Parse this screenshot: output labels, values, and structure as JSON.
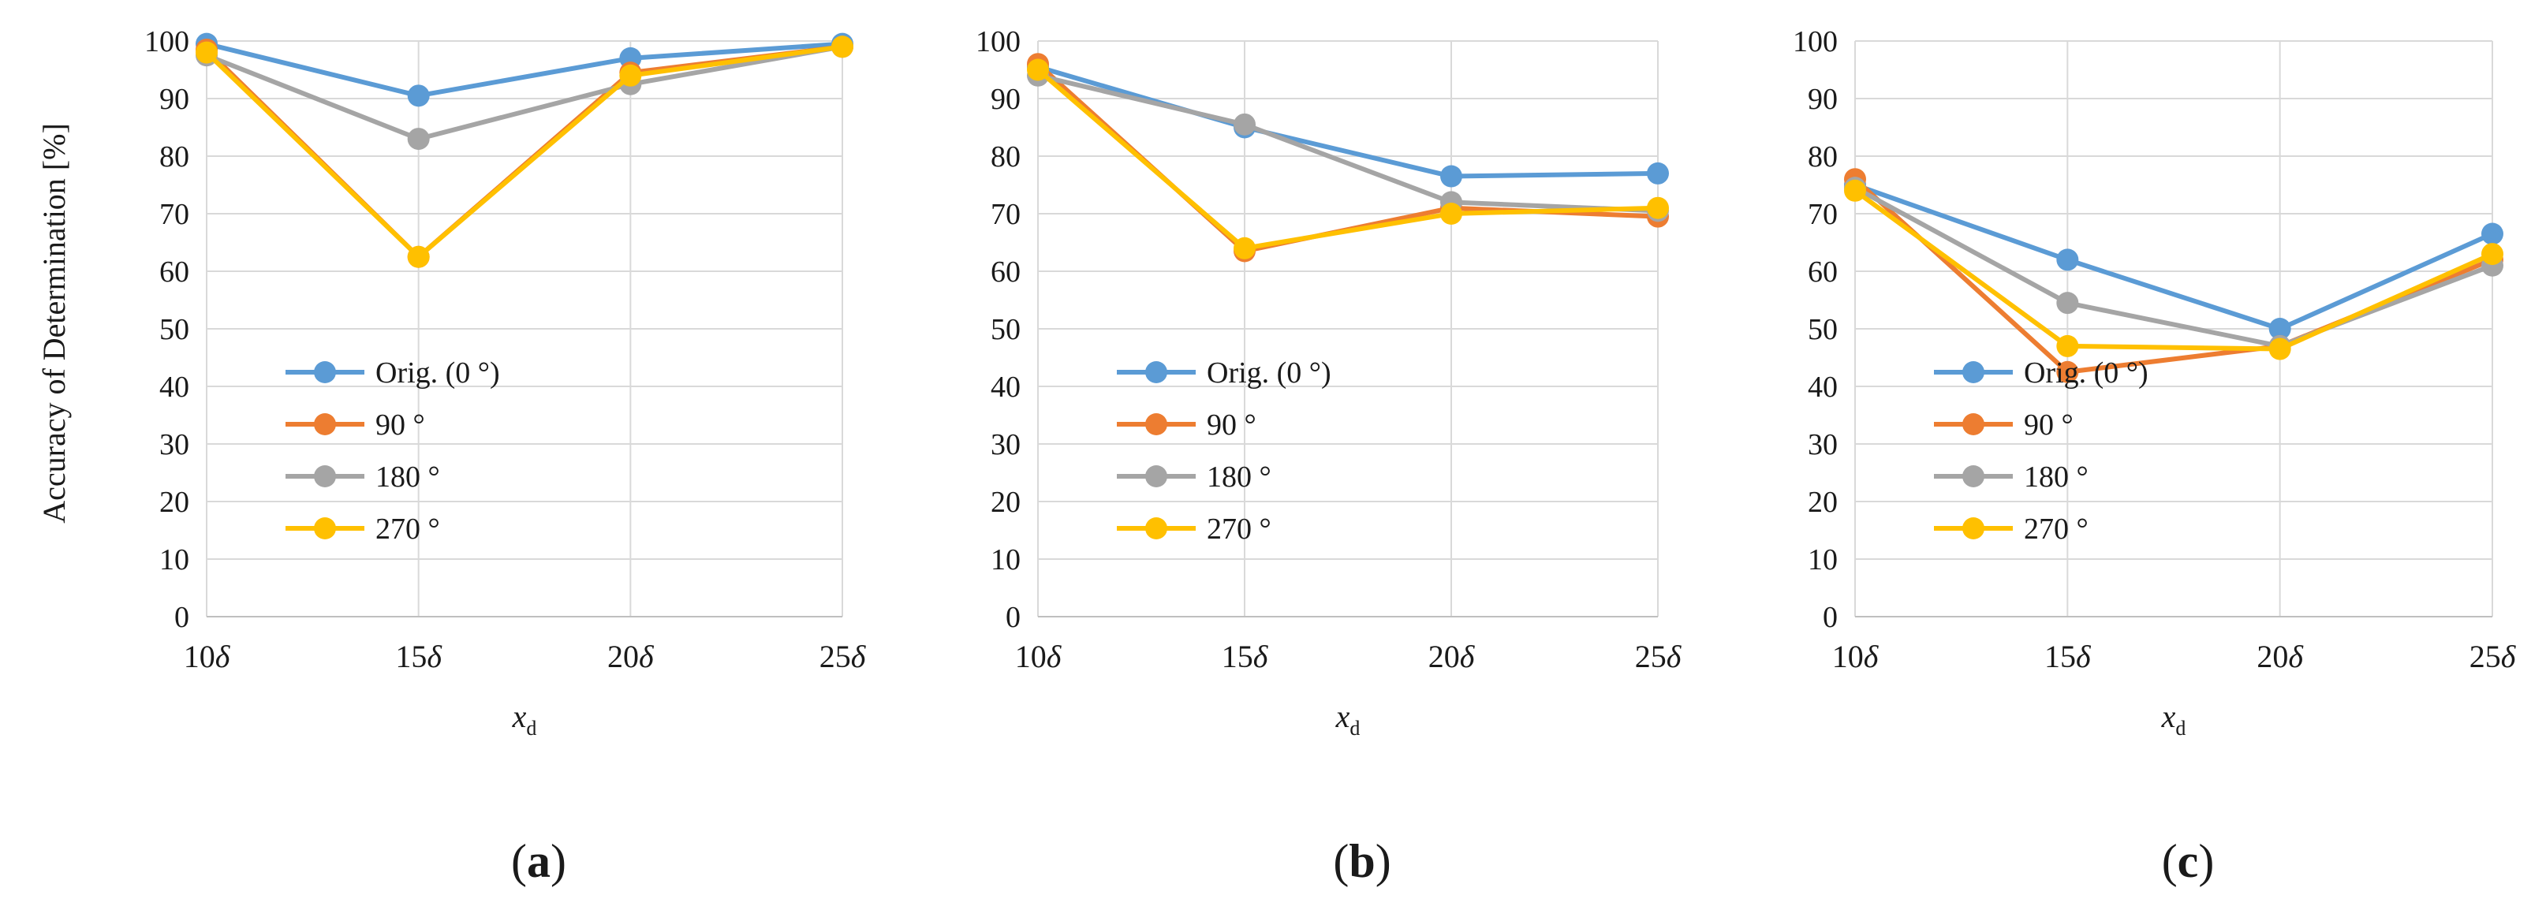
{
  "figure": {
    "ylabel": "Accuracy of Determination [%]",
    "xlabel_main": "x",
    "xlabel_sub": "d"
  },
  "chart_data": [
    {
      "type": "line",
      "panel": "a",
      "panel_label_open": "(",
      "panel_label_letter": "a",
      "panel_label_close": ")",
      "categories": [
        10,
        15,
        20,
        25
      ],
      "category_symbol": "δ",
      "ylim": [
        0,
        100
      ],
      "yticks": [
        0,
        10,
        20,
        30,
        40,
        50,
        60,
        70,
        80,
        90,
        100
      ],
      "grid": true,
      "legend_position": "lower-left",
      "series": [
        {
          "name": "Orig. (0 °)",
          "color": "#5b9bd5",
          "values": [
            99.5,
            90.5,
            97.0,
            99.5
          ]
        },
        {
          "name": "90 °",
          "color": "#ed7d31",
          "values": [
            98.5,
            62.5,
            94.5,
            99.0
          ]
        },
        {
          "name": "180 °",
          "color": "#a5a5a5",
          "values": [
            97.5,
            83.0,
            92.5,
            99.0
          ]
        },
        {
          "name": "270 °",
          "color": "#ffc000",
          "values": [
            98.0,
            62.5,
            94.0,
            99.0
          ]
        }
      ]
    },
    {
      "type": "line",
      "panel": "b",
      "panel_label_open": "(",
      "panel_label_letter": "b",
      "panel_label_close": ")",
      "categories": [
        10,
        15,
        20,
        25
      ],
      "category_symbol": "δ",
      "ylim": [
        0,
        100
      ],
      "yticks": [
        0,
        10,
        20,
        30,
        40,
        50,
        60,
        70,
        80,
        90,
        100
      ],
      "grid": true,
      "legend_position": "lower-left",
      "series": [
        {
          "name": "Orig. (0 °)",
          "color": "#5b9bd5",
          "values": [
            95.5,
            85.0,
            76.5,
            77.0
          ]
        },
        {
          "name": "90 °",
          "color": "#ed7d31",
          "values": [
            96.0,
            63.5,
            71.0,
            69.5
          ]
        },
        {
          "name": "180 °",
          "color": "#a5a5a5",
          "values": [
            94.0,
            85.5,
            72.0,
            70.5
          ]
        },
        {
          "name": "270 °",
          "color": "#ffc000",
          "values": [
            95.0,
            64.0,
            70.0,
            71.0
          ]
        }
      ]
    },
    {
      "type": "line",
      "panel": "c",
      "panel_label_open": "(",
      "panel_label_letter": "c",
      "panel_label_close": ")",
      "categories": [
        10,
        15,
        20,
        25
      ],
      "category_symbol": "δ",
      "ylim": [
        0,
        100
      ],
      "yticks": [
        0,
        10,
        20,
        30,
        40,
        50,
        60,
        70,
        80,
        90,
        100
      ],
      "grid": true,
      "legend_position": "lower-left",
      "series": [
        {
          "name": "Orig. (0 °)",
          "color": "#5b9bd5",
          "values": [
            75.0,
            62.0,
            50.0,
            66.5
          ]
        },
        {
          "name": "90 °",
          "color": "#ed7d31",
          "values": [
            76.0,
            42.5,
            47.0,
            62.0
          ]
        },
        {
          "name": "180 °",
          "color": "#a5a5a5",
          "values": [
            74.5,
            54.5,
            47.0,
            61.0
          ]
        },
        {
          "name": "270 °",
          "color": "#ffc000",
          "values": [
            74.0,
            47.0,
            46.5,
            63.0
          ]
        }
      ]
    }
  ]
}
